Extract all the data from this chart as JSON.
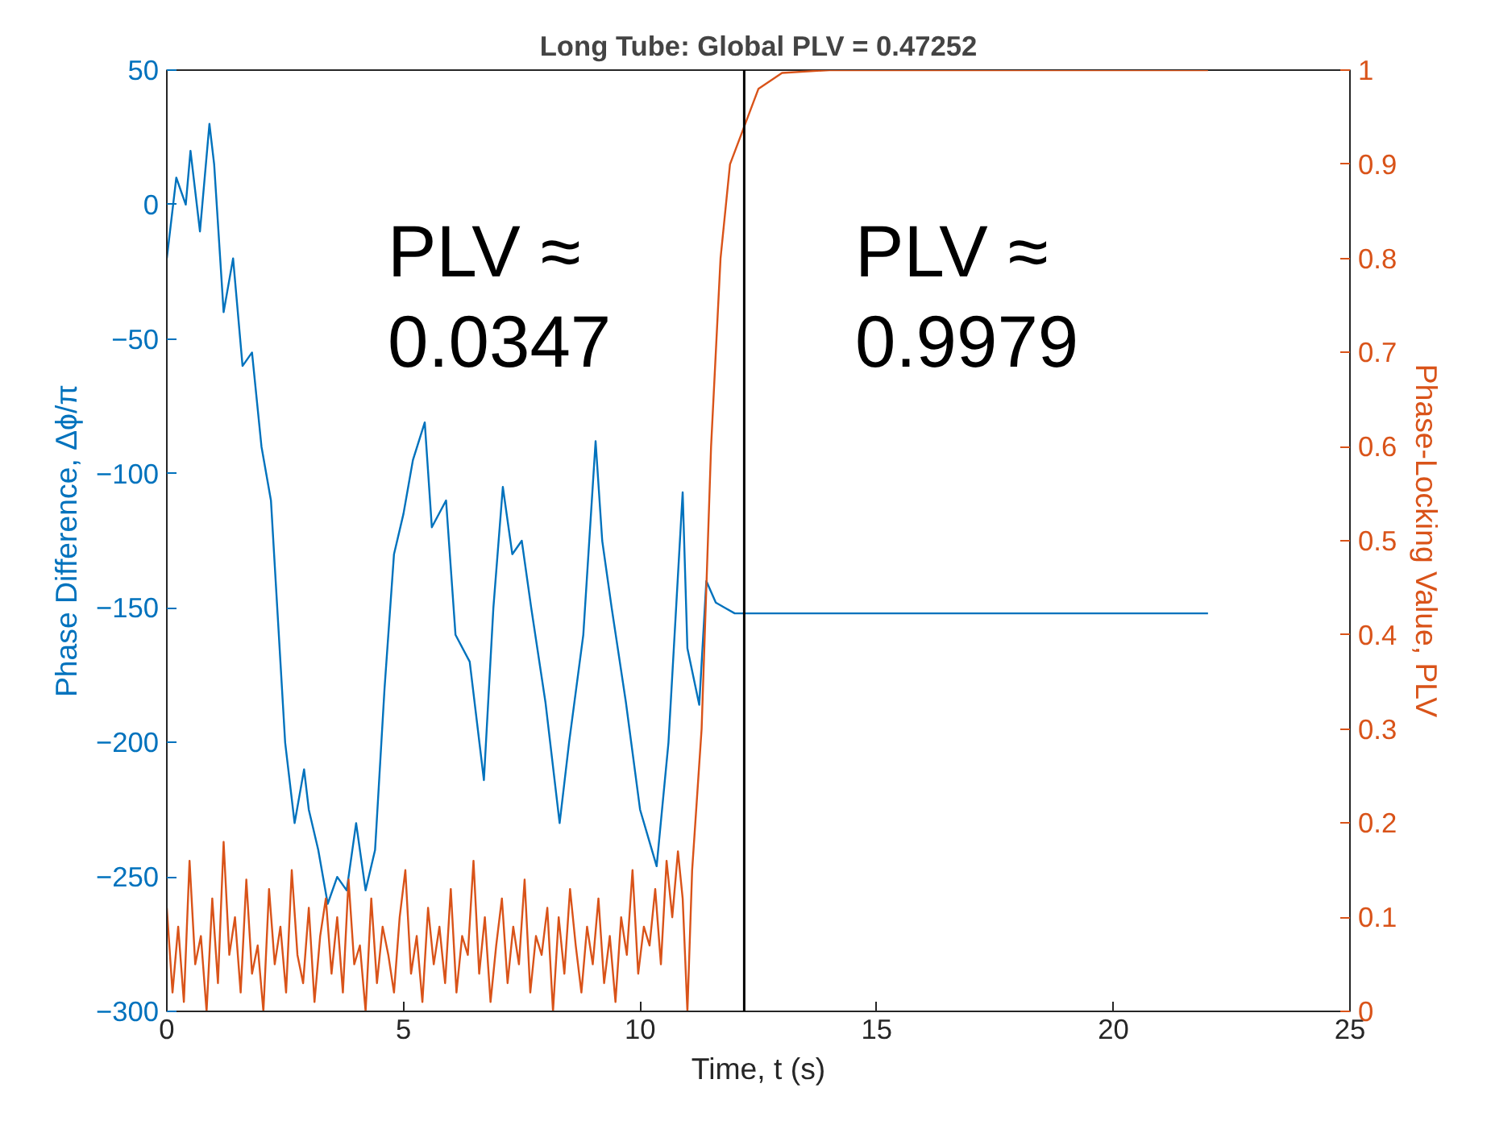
{
  "chart_data": {
    "type": "line",
    "title": "Long Tube: Global PLV = 0.47252",
    "xlabel": "Time, t (s)",
    "ylabel": "Phase Difference, Δϕ/π",
    "y2label": "Phase-Locking Value, PLV",
    "xlim": [
      0,
      25
    ],
    "xticks": [
      0,
      5,
      10,
      15,
      20,
      25
    ],
    "ylim": [
      -300,
      50
    ],
    "yticks": [
      -300,
      -250,
      -200,
      -150,
      -100,
      -50,
      0,
      50
    ],
    "y2lim": [
      0,
      1
    ],
    "y2ticks": [
      0,
      0.1,
      0.2,
      0.3,
      0.4,
      0.5,
      0.6,
      0.7,
      0.8,
      0.9,
      1
    ],
    "grid": false,
    "series": [
      {
        "color": "#0072bd",
        "x": [
          0,
          0.2,
          0.4,
          0.5,
          0.7,
          0.9,
          1.0,
          1.2,
          1.4,
          1.6,
          1.8,
          2.0,
          2.2,
          2.4,
          2.5,
          2.7,
          2.9,
          3.0,
          3.2,
          3.4,
          3.6,
          3.8,
          4.0,
          4.2,
          4.4,
          4.6,
          4.8,
          5.0,
          5.2,
          5.45,
          5.6,
          5.9,
          6.1,
          6.4,
          6.7,
          6.9,
          7.1,
          7.3,
          7.5,
          7.7,
          8.0,
          8.3,
          8.5,
          8.8,
          9.06,
          9.2,
          9.4,
          9.7,
          10.0,
          10.35,
          10.6,
          10.9,
          11.0,
          11.25,
          11.4,
          11.6,
          11.8,
          12.0,
          22.0
        ],
        "values": [
          -20,
          10,
          0,
          20,
          -10,
          30,
          15,
          -40,
          -20,
          -60,
          -55,
          -90,
          -110,
          -170,
          -200,
          -230,
          -210,
          -225,
          -240,
          -260,
          -250,
          -255,
          -230,
          -255,
          -240,
          -180,
          -130,
          -115,
          -95,
          -81,
          -120,
          -110,
          -160,
          -170,
          -214,
          -150,
          -105,
          -130,
          -125,
          -150,
          -185,
          -230,
          -200,
          -160,
          -88,
          -125,
          -150,
          -185,
          -225,
          -246,
          -200,
          -107,
          -165,
          -186,
          -140,
          -148,
          -150,
          -152,
          -152
        ]
      },
      {
        "color": "#d95319",
        "axis": "y2",
        "x": [
          0,
          0.12,
          0.24,
          0.36,
          0.48,
          0.6,
          0.72,
          0.84,
          0.96,
          1.08,
          1.2,
          1.32,
          1.44,
          1.56,
          1.68,
          1.8,
          1.92,
          2.04,
          2.16,
          2.28,
          2.4,
          2.52,
          2.64,
          2.76,
          2.88,
          3.0,
          3.12,
          3.24,
          3.36,
          3.48,
          3.6,
          3.72,
          3.84,
          3.96,
          4.08,
          4.2,
          4.32,
          4.44,
          4.56,
          4.68,
          4.8,
          4.92,
          5.04,
          5.16,
          5.28,
          5.4,
          5.52,
          5.64,
          5.76,
          5.88,
          6.0,
          6.12,
          6.24,
          6.36,
          6.48,
          6.6,
          6.72,
          6.84,
          6.96,
          7.08,
          7.2,
          7.32,
          7.44,
          7.56,
          7.68,
          7.8,
          7.92,
          8.04,
          8.16,
          8.28,
          8.4,
          8.52,
          8.64,
          8.76,
          8.88,
          9.0,
          9.12,
          9.24,
          9.36,
          9.48,
          9.6,
          9.72,
          9.84,
          9.96,
          10.08,
          10.2,
          10.32,
          10.44,
          10.56,
          10.68,
          10.8,
          10.9,
          11.0,
          11.1,
          11.3,
          11.5,
          11.7,
          11.9,
          12.2,
          12.5,
          13.0,
          14.0,
          22.0
        ],
        "values": [
          0.11,
          0.02,
          0.09,
          0.01,
          0.16,
          0.05,
          0.08,
          0.0,
          0.12,
          0.03,
          0.18,
          0.06,
          0.1,
          0.02,
          0.14,
          0.04,
          0.07,
          0.0,
          0.13,
          0.05,
          0.09,
          0.02,
          0.15,
          0.06,
          0.03,
          0.11,
          0.01,
          0.08,
          0.12,
          0.04,
          0.1,
          0.02,
          0.14,
          0.05,
          0.07,
          0.0,
          0.12,
          0.03,
          0.09,
          0.06,
          0.02,
          0.1,
          0.15,
          0.04,
          0.08,
          0.01,
          0.11,
          0.05,
          0.09,
          0.03,
          0.13,
          0.02,
          0.08,
          0.06,
          0.16,
          0.04,
          0.1,
          0.01,
          0.07,
          0.12,
          0.03,
          0.09,
          0.05,
          0.14,
          0.02,
          0.08,
          0.06,
          0.11,
          0.0,
          0.1,
          0.04,
          0.13,
          0.07,
          0.02,
          0.09,
          0.05,
          0.12,
          0.03,
          0.08,
          0.01,
          0.1,
          0.06,
          0.15,
          0.04,
          0.09,
          0.07,
          0.13,
          0.05,
          0.16,
          0.1,
          0.17,
          0.12,
          0.0,
          0.15,
          0.3,
          0.6,
          0.8,
          0.9,
          0.94,
          0.98,
          0.997,
          1,
          1
        ]
      }
    ],
    "ref_lines": [
      {
        "axis": "x",
        "value": 12.2,
        "color": "#000000"
      }
    ],
    "annotations": [
      "PLV ≈\n0.0347",
      "PLV ≈\n0.9979"
    ]
  }
}
